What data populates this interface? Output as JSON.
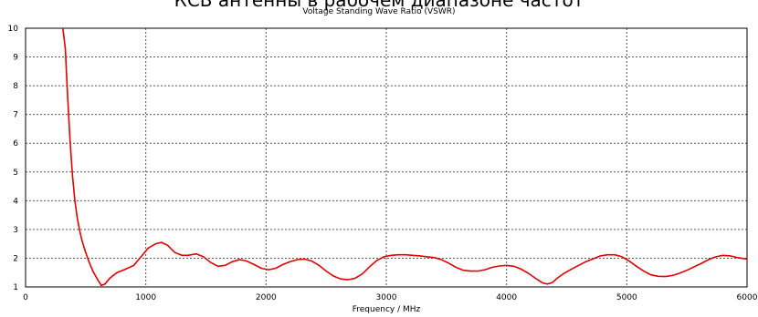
{
  "heading": "КСВ антенны в рабочем диапазоне частот",
  "chart_data": {
    "type": "line",
    "title": "Voltage Standing Wave Ratio (VSWR)",
    "xlabel": "Frequency / MHz",
    "ylabel": "",
    "xlim": [
      0,
      6000
    ],
    "ylim": [
      1,
      10
    ],
    "x_ticks": [
      "0",
      "1000",
      "2000",
      "3000",
      "4000",
      "5000",
      "6000"
    ],
    "y_ticks": [
      "1",
      "2",
      "3",
      "4",
      "5",
      "6",
      "7",
      "8",
      "9",
      "10"
    ],
    "grid": true,
    "line_color": "#e00000",
    "series": [
      {
        "values_x": [
          310,
          330,
          350,
          370,
          390,
          410,
          430,
          450,
          470,
          500,
          530,
          560,
          600,
          630,
          660,
          700,
          760,
          820,
          900,
          960,
          1020,
          1080,
          1130,
          1180,
          1240,
          1300,
          1350,
          1420,
          1480,
          1540,
          1600,
          1660,
          1720,
          1780,
          1840,
          1900,
          1960,
          2020,
          2080,
          2140,
          2200,
          2260,
          2320,
          2380,
          2440,
          2500,
          2560,
          2620,
          2680,
          2740,
          2800,
          2860,
          2920,
          2980,
          3040,
          3100,
          3160,
          3220,
          3280,
          3340,
          3400,
          3460,
          3520,
          3580,
          3640,
          3700,
          3760,
          3820,
          3880,
          3940,
          4000,
          4060,
          4120,
          4180,
          4240,
          4300,
          4340,
          4380,
          4420,
          4480,
          4540,
          4600,
          4660,
          4720,
          4780,
          4840,
          4900,
          4960,
          5020,
          5080,
          5140,
          5200,
          5260,
          5320,
          5380,
          5440,
          5500,
          5560,
          5620,
          5680,
          5740,
          5800,
          5860,
          5920,
          5980,
          6000
        ],
        "values_y": [
          10.0,
          9.3,
          7.6,
          6.1,
          4.9,
          4.0,
          3.4,
          2.95,
          2.6,
          2.2,
          1.85,
          1.55,
          1.25,
          1.05,
          1.1,
          1.3,
          1.5,
          1.6,
          1.75,
          2.05,
          2.35,
          2.5,
          2.55,
          2.45,
          2.2,
          2.1,
          2.1,
          2.15,
          2.05,
          1.85,
          1.72,
          1.75,
          1.88,
          1.95,
          1.9,
          1.78,
          1.65,
          1.6,
          1.65,
          1.78,
          1.88,
          1.95,
          1.97,
          1.9,
          1.75,
          1.55,
          1.38,
          1.28,
          1.25,
          1.3,
          1.45,
          1.7,
          1.92,
          2.05,
          2.1,
          2.12,
          2.12,
          2.1,
          2.08,
          2.05,
          2.02,
          1.95,
          1.82,
          1.68,
          1.58,
          1.55,
          1.55,
          1.6,
          1.68,
          1.73,
          1.75,
          1.72,
          1.62,
          1.48,
          1.3,
          1.14,
          1.1,
          1.15,
          1.3,
          1.48,
          1.62,
          1.75,
          1.88,
          1.98,
          2.08,
          2.12,
          2.12,
          2.05,
          1.9,
          1.72,
          1.55,
          1.42,
          1.37,
          1.36,
          1.4,
          1.48,
          1.58,
          1.7,
          1.82,
          1.95,
          2.05,
          2.1,
          2.08,
          2.02,
          1.98,
          1.97
        ]
      }
    ]
  }
}
